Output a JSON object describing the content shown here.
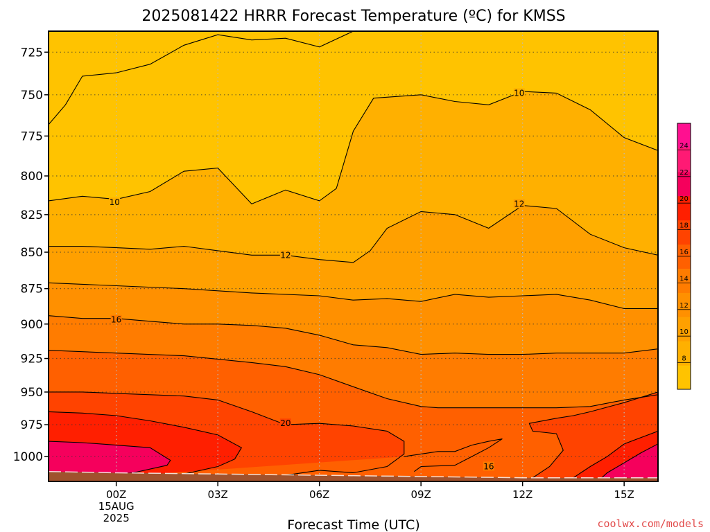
{
  "title": "2025081422 HRRR Forecast Temperature (ºC) for KMSS",
  "credit": "coolwx.com/models",
  "chart_data": {
    "type": "contour",
    "title": "2025081422 HRRR Forecast Temperature (ºC) for KMSS",
    "xlabel": "Forecast Time (UTC)",
    "ylabel": "",
    "y_axis": "pressure (hPa)",
    "y_scale": "log",
    "y_inverted": true,
    "ylim": [
      1020,
      713
    ],
    "xlim": [
      -2,
      16
    ],
    "x_units": "hours from 2025-08-15 00Z",
    "x_ticks": [
      {
        "value": 0,
        "lines": [
          "00Z",
          "15AUG",
          "2025"
        ]
      },
      {
        "value": 3,
        "lines": [
          "03Z"
        ]
      },
      {
        "value": 6,
        "lines": [
          "06Z"
        ]
      },
      {
        "value": 9,
        "lines": [
          "09Z"
        ]
      },
      {
        "value": 12,
        "lines": [
          "12Z"
        ]
      },
      {
        "value": 15,
        "lines": [
          "15Z"
        ]
      }
    ],
    "y_ticks": [
      725,
      750,
      775,
      800,
      825,
      850,
      875,
      900,
      925,
      950,
      975,
      1000
    ],
    "grid": true,
    "colorbar": {
      "placement": "right",
      "labels": [
        8,
        10,
        12,
        14,
        16,
        18,
        20,
        22,
        24
      ],
      "levels": [
        6,
        8,
        10,
        12,
        14,
        16,
        18,
        20,
        22,
        24,
        26
      ],
      "colors": [
        "#ffc300",
        "#ffb000",
        "#ffa000",
        "#ff9000",
        "#ff7c00",
        "#ff6000",
        "#ff4300",
        "#ff1f00",
        "#f5005c",
        "#ff1a74",
        "#ff1090"
      ]
    },
    "contour_labels": [
      {
        "text": "10",
        "x": -0.05,
        "p": 817
      },
      {
        "text": "10",
        "x": 11.9,
        "p": 749
      },
      {
        "text": "12",
        "x": 5.0,
        "p": 852
      },
      {
        "text": "12",
        "x": 11.9,
        "p": 818
      },
      {
        "text": "16",
        "x": 0.0,
        "p": 897
      },
      {
        "text": "20",
        "x": 5.0,
        "p": 974
      },
      {
        "text": "16",
        "x": 11.0,
        "p": 1008
      }
    ],
    "isotherms": [
      {
        "level": 8,
        "points": [
          [
            -2,
            768
          ],
          [
            -1.5,
            756
          ],
          [
            -1.0,
            739
          ],
          [
            0.0,
            737
          ],
          [
            1.0,
            732
          ],
          [
            2.0,
            721
          ],
          [
            3.0,
            715
          ],
          [
            4.0,
            718
          ],
          [
            5.0,
            717
          ],
          [
            6.0,
            722
          ],
          [
            7.0,
            713
          ]
        ]
      },
      {
        "level": 10,
        "points": [
          [
            -2,
            816
          ],
          [
            -1.0,
            813
          ],
          [
            0.0,
            815
          ],
          [
            1.0,
            810
          ],
          [
            2.0,
            797
          ],
          [
            3.0,
            795
          ],
          [
            4.0,
            818
          ],
          [
            5.0,
            809
          ],
          [
            6.0,
            816
          ],
          [
            6.5,
            808
          ],
          [
            7.0,
            772
          ],
          [
            7.6,
            752
          ],
          [
            9.0,
            750
          ],
          [
            10.0,
            754
          ],
          [
            11.0,
            756
          ],
          [
            12.0,
            748
          ],
          [
            13.0,
            749
          ],
          [
            14.0,
            759
          ],
          [
            15.0,
            776
          ],
          [
            16.0,
            784
          ]
        ]
      },
      {
        "level": 12,
        "points": [
          [
            -2,
            846
          ],
          [
            -1.0,
            846
          ],
          [
            0.0,
            847
          ],
          [
            1.0,
            848
          ],
          [
            2.0,
            846
          ],
          [
            3.0,
            849
          ],
          [
            4.0,
            852
          ],
          [
            5.0,
            852
          ],
          [
            6.0,
            855
          ],
          [
            7.0,
            857
          ],
          [
            7.5,
            849
          ],
          [
            8.0,
            834
          ],
          [
            9.0,
            823
          ],
          [
            10.0,
            825
          ],
          [
            11.0,
            834
          ],
          [
            12.0,
            819
          ],
          [
            13.0,
            821
          ],
          [
            14.0,
            838
          ],
          [
            15.0,
            847
          ],
          [
            16.0,
            852
          ]
        ]
      },
      {
        "level": 14,
        "points": [
          [
            -2,
            871
          ],
          [
            0.0,
            873
          ],
          [
            2.0,
            875
          ],
          [
            4.0,
            878
          ],
          [
            6.0,
            880
          ],
          [
            7.0,
            883
          ],
          [
            8.0,
            882
          ],
          [
            9.0,
            884
          ],
          [
            10.0,
            879
          ],
          [
            11.0,
            881
          ],
          [
            12.0,
            880
          ],
          [
            13.0,
            879
          ],
          [
            14.0,
            883
          ],
          [
            15.0,
            889
          ],
          [
            16.0,
            889
          ]
        ]
      },
      {
        "level": 16,
        "points": [
          [
            -2,
            894
          ],
          [
            -1.0,
            896
          ],
          [
            0.0,
            896
          ],
          [
            1.0,
            898
          ],
          [
            2.0,
            900
          ],
          [
            3.0,
            900
          ],
          [
            4.0,
            901
          ],
          [
            5.0,
            903
          ],
          [
            6.0,
            908
          ],
          [
            7.0,
            915
          ],
          [
            8.0,
            917
          ],
          [
            9.0,
            922
          ],
          [
            10.0,
            921
          ],
          [
            11.0,
            922
          ],
          [
            12.0,
            922
          ],
          [
            13.0,
            921
          ],
          [
            14.0,
            921
          ],
          [
            15.0,
            921
          ],
          [
            16.0,
            918
          ]
        ]
      },
      {
        "level": 18,
        "points": [
          [
            -2,
            919
          ],
          [
            -1.0,
            920
          ],
          [
            0.0,
            921
          ],
          [
            2.0,
            923
          ],
          [
            4.0,
            928
          ],
          [
            5.0,
            931
          ],
          [
            6.0,
            937
          ],
          [
            7.0,
            946
          ],
          [
            8.0,
            955
          ],
          [
            9.0,
            961
          ],
          [
            9.5,
            962
          ],
          [
            10.0,
            962
          ],
          [
            11.0,
            962
          ],
          [
            12.0,
            962
          ],
          [
            13.0,
            962
          ],
          [
            14.0,
            961
          ],
          [
            15.0,
            956
          ],
          [
            16.0,
            952
          ]
        ]
      },
      {
        "level": 20,
        "points": [
          [
            -2,
            950
          ],
          [
            -1.0,
            950
          ],
          [
            0.0,
            951
          ],
          [
            1.0,
            952
          ],
          [
            2.0,
            953
          ],
          [
            3.0,
            956
          ],
          [
            4.0,
            965
          ],
          [
            5.0,
            975
          ],
          [
            6.0,
            974
          ],
          [
            7.0,
            976
          ],
          [
            8.0,
            980
          ],
          [
            8.5,
            988
          ],
          [
            8.5,
            998
          ],
          [
            8.0,
            1008
          ],
          [
            7.0,
            1013
          ],
          [
            6.0,
            1011
          ],
          [
            5.0,
            1015
          ],
          [
            4.0,
            1017
          ],
          [
            3.0,
            1019
          ]
        ]
      },
      {
        "level": 22,
        "points": [
          [
            -2,
            965
          ],
          [
            -1.0,
            966
          ],
          [
            0.0,
            968
          ],
          [
            1.0,
            972
          ],
          [
            2.0,
            977
          ],
          [
            3.0,
            983
          ],
          [
            3.7,
            993
          ],
          [
            3.5,
            1002
          ],
          [
            3.0,
            1008
          ],
          [
            2.0,
            1014
          ],
          [
            1.0,
            1016
          ]
        ]
      },
      {
        "level": 24,
        "points": [
          [
            -2,
            988
          ],
          [
            -1.0,
            989
          ],
          [
            0.0,
            991
          ],
          [
            1.0,
            993
          ],
          [
            1.6,
            1003
          ],
          [
            1.5,
            1007
          ],
          [
            0.5,
            1013
          ],
          [
            -0.5,
            1015
          ]
        ]
      },
      {
        "level": 18,
        "points": [
          [
            8.5,
            1000
          ],
          [
            9.5,
            996
          ],
          [
            10.0,
            996
          ],
          [
            10.5,
            991
          ],
          [
            11.0,
            988
          ],
          [
            11.4,
            986
          ],
          [
            11.0,
            993
          ],
          [
            10.5,
            1000
          ],
          [
            10.0,
            1007
          ],
          [
            9.0,
            1008
          ],
          [
            8.8,
            1012
          ]
        ]
      },
      {
        "level": 20,
        "points": [
          [
            16,
            950
          ],
          [
            15.0,
            958
          ],
          [
            14.0,
            965
          ],
          [
            13.5,
            968
          ],
          [
            13.0,
            970
          ],
          [
            12.2,
            974
          ],
          [
            12.3,
            980
          ],
          [
            13.0,
            982
          ],
          [
            13.2,
            995
          ],
          [
            12.8,
            1008
          ],
          [
            12.3,
            1017
          ]
        ]
      },
      {
        "level": 22,
        "points": [
          [
            16,
            980
          ],
          [
            15.0,
            990
          ],
          [
            14.5,
            1000
          ],
          [
            14.0,
            1008
          ],
          [
            13.5,
            1017
          ]
        ]
      },
      {
        "level": 24,
        "points": [
          [
            16,
            990
          ],
          [
            15.5,
            997
          ],
          [
            15.0,
            1005
          ],
          [
            14.5,
            1013
          ],
          [
            14.3,
            1018
          ]
        ]
      }
    ]
  }
}
